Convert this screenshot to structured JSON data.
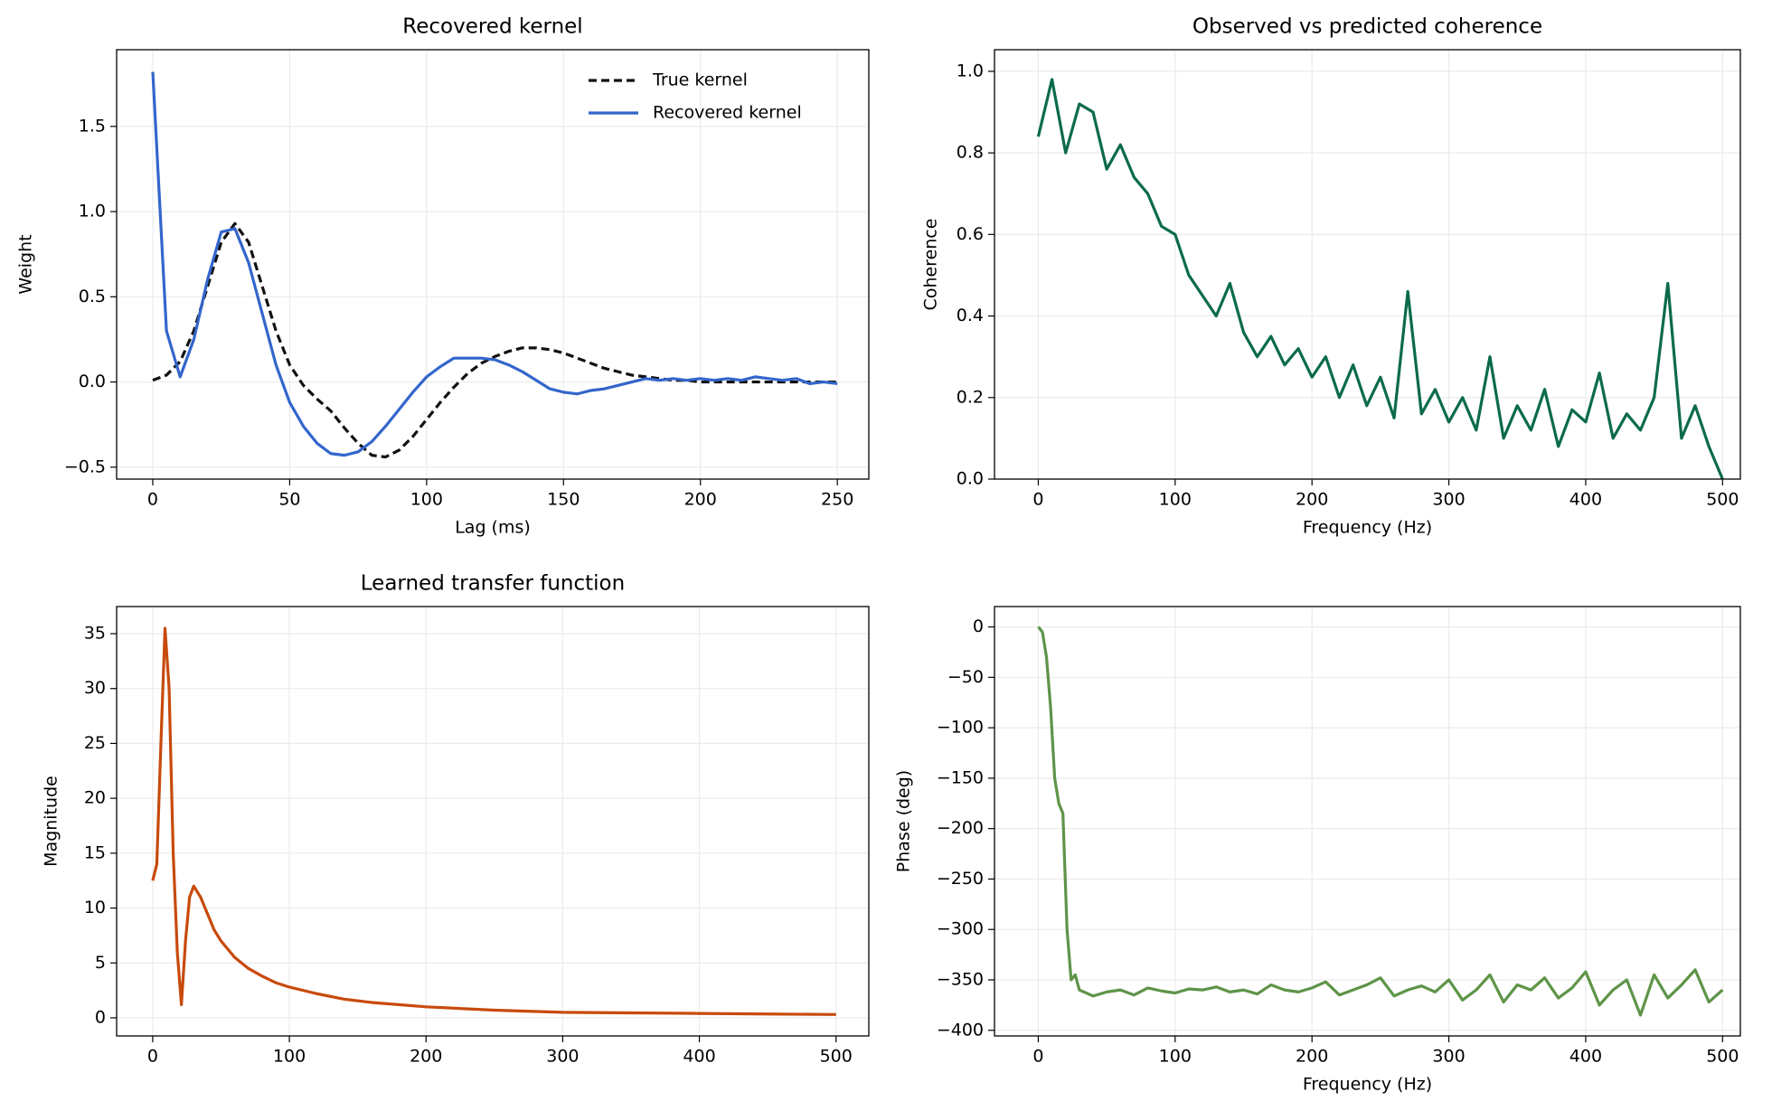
{
  "chart_data": [
    {
      "type": "line",
      "title": "Recovered kernel",
      "x_label": "Lag (ms)",
      "y_label": "Weight",
      "x": [
        0,
        5,
        10,
        15,
        20,
        25,
        30,
        35,
        40,
        45,
        50,
        55,
        60,
        65,
        70,
        75,
        80,
        85,
        90,
        95,
        100,
        105,
        110,
        115,
        120,
        125,
        130,
        135,
        140,
        145,
        150,
        155,
        160,
        165,
        170,
        175,
        180,
        185,
        190,
        195,
        200,
        205,
        210,
        215,
        220,
        225,
        230,
        235,
        240,
        245,
        250
      ],
      "series": [
        {
          "name": "True kernel",
          "color": "#111111",
          "linestyle": "dashed",
          "values": [
            0.01,
            0.04,
            0.12,
            0.3,
            0.56,
            0.82,
            0.93,
            0.82,
            0.56,
            0.3,
            0.1,
            -0.02,
            -0.1,
            -0.17,
            -0.27,
            -0.36,
            -0.43,
            -0.44,
            -0.4,
            -0.32,
            -0.22,
            -0.12,
            -0.03,
            0.05,
            0.11,
            0.15,
            0.18,
            0.2,
            0.2,
            0.19,
            0.17,
            0.14,
            0.11,
            0.08,
            0.06,
            0.04,
            0.03,
            0.02,
            0.01,
            0.01,
            0,
            0,
            0,
            0,
            0,
            0,
            0,
            0,
            0,
            0,
            0
          ]
        },
        {
          "name": "Recovered kernel",
          "color": "#3366cc",
          "linestyle": "solid",
          "values": [
            1.82,
            0.3,
            0.03,
            0.25,
            0.6,
            0.88,
            0.9,
            0.7,
            0.4,
            0.1,
            -0.12,
            -0.26,
            -0.36,
            -0.42,
            -0.43,
            -0.41,
            -0.35,
            -0.26,
            -0.16,
            -0.06,
            0.03,
            0.09,
            0.14,
            0.14,
            0.14,
            0.13,
            0.1,
            0.06,
            0.01,
            -0.04,
            -0.06,
            -0.07,
            -0.05,
            -0.04,
            -0.02,
            0,
            0.02,
            0.01,
            0.02,
            0.01,
            0.02,
            0.01,
            0.02,
            0.01,
            0.03,
            0.02,
            0.01,
            0.02,
            -0.01,
            0,
            -0.01
          ]
        }
      ],
      "xlim": [
        -13.2,
        261.5
      ],
      "ylim": [
        -0.57,
        1.95
      ],
      "xticks": [
        0,
        50,
        100,
        150,
        200,
        250
      ],
      "yticks": [
        {
          "value": -0.5,
          "label": "−0.5"
        },
        {
          "value": 0,
          "label": "0.0"
        },
        {
          "value": 0.5,
          "label": "0.5"
        },
        {
          "value": 1,
          "label": "1.0"
        },
        {
          "value": 1.5,
          "label": "1.5"
        }
      ],
      "grid": true,
      "legend": "upper right"
    },
    {
      "type": "line",
      "title": "Observed vs predicted coherence",
      "x_label": "Frequency (Hz)",
      "y_label": "Coherence",
      "x": [
        0,
        10,
        20,
        30,
        40,
        50,
        60,
        70,
        80,
        90,
        100,
        110,
        120,
        130,
        140,
        150,
        160,
        170,
        180,
        190,
        200,
        210,
        220,
        230,
        240,
        250,
        260,
        270,
        280,
        290,
        300,
        310,
        320,
        330,
        340,
        350,
        360,
        370,
        380,
        390,
        400,
        410,
        420,
        430,
        440,
        450,
        460,
        470,
        480,
        490,
        500
      ],
      "series": [
        {
          "name": "Coherence",
          "color": "#0b6b4a",
          "linestyle": "solid",
          "values": [
            0.84,
            0.98,
            0.8,
            0.92,
            0.9,
            0.76,
            0.82,
            0.74,
            0.7,
            0.62,
            0.6,
            0.5,
            0.45,
            0.4,
            0.48,
            0.36,
            0.3,
            0.35,
            0.28,
            0.32,
            0.25,
            0.3,
            0.2,
            0.28,
            0.18,
            0.25,
            0.15,
            0.46,
            0.16,
            0.22,
            0.14,
            0.2,
            0.12,
            0.3,
            0.1,
            0.18,
            0.12,
            0.22,
            0.08,
            0.17,
            0.14,
            0.26,
            0.1,
            0.16,
            0.12,
            0.2,
            0.48,
            0.1,
            0.18,
            0.08,
            0.0
          ]
        }
      ],
      "xlim": [
        -32,
        513
      ],
      "ylim": [
        0,
        1.053
      ],
      "xticks": [
        0,
        100,
        200,
        300,
        400,
        500
      ],
      "yticks": [
        {
          "value": 0,
          "label": "0.0"
        },
        {
          "value": 0.2,
          "label": "0.2"
        },
        {
          "value": 0.4,
          "label": "0.4"
        },
        {
          "value": 0.6,
          "label": "0.6"
        },
        {
          "value": 0.8,
          "label": "0.8"
        },
        {
          "value": 1,
          "label": "1.0"
        }
      ],
      "grid": true
    },
    {
      "type": "line",
      "title": "Learned transfer function",
      "y_label": "Magnitude",
      "x": [
        0,
        3,
        6,
        9,
        12,
        15,
        18,
        21,
        24,
        27,
        30,
        35,
        40,
        45,
        50,
        60,
        70,
        80,
        90,
        100,
        120,
        140,
        160,
        180,
        200,
        250,
        300,
        350,
        400,
        450,
        500
      ],
      "series": [
        {
          "name": "Magnitude",
          "color": "#c84a0c",
          "linestyle": "solid",
          "values": [
            12.5,
            14,
            25,
            35.5,
            30,
            15,
            6,
            1.2,
            7,
            11,
            12,
            11,
            9.5,
            8,
            7,
            5.5,
            4.5,
            3.8,
            3.2,
            2.8,
            2.2,
            1.7,
            1.4,
            1.2,
            1.0,
            0.7,
            0.5,
            0.45,
            0.4,
            0.35,
            0.3
          ]
        }
      ],
      "xlim": [
        -26.4,
        524
      ],
      "ylim": [
        -1.65,
        37.47
      ],
      "xticks": [
        0,
        100,
        200,
        300,
        400,
        500
      ],
      "yticks": [
        0,
        5,
        10,
        15,
        20,
        25,
        30,
        35
      ],
      "grid": true
    },
    {
      "type": "line",
      "x_label": "Frequency (Hz)",
      "y_label": "Phase (deg)",
      "x": [
        0,
        3,
        6,
        9,
        12,
        15,
        18,
        21,
        24,
        27,
        30,
        40,
        50,
        60,
        70,
        80,
        90,
        100,
        110,
        120,
        130,
        140,
        150,
        160,
        170,
        180,
        190,
        200,
        210,
        220,
        230,
        240,
        250,
        260,
        270,
        280,
        290,
        300,
        310,
        320,
        330,
        340,
        350,
        360,
        370,
        380,
        390,
        400,
        410,
        420,
        430,
        440,
        450,
        460,
        470,
        480,
        490,
        500
      ],
      "series": [
        {
          "name": "Phase",
          "color": "#5e9448",
          "linestyle": "solid",
          "values": [
            0,
            -5,
            -30,
            -80,
            -150,
            -175,
            -185,
            -300,
            -350,
            -345,
            -360,
            -366,
            -362,
            -360,
            -365,
            -358,
            -361,
            -363,
            -359,
            -360,
            -357,
            -362,
            -360,
            -364,
            -355,
            -360,
            -362,
            -358,
            -352,
            -365,
            -360,
            -355,
            -348,
            -366,
            -360,
            -356,
            -362,
            -350,
            -370,
            -360,
            -345,
            -372,
            -355,
            -360,
            -348,
            -368,
            -358,
            -342,
            -375,
            -360,
            -350,
            -385,
            -345,
            -368,
            -355,
            -340,
            -372,
            -360
          ]
        }
      ],
      "xlim": [
        -32,
        513
      ],
      "ylim": [
        -405.6,
        20.2
      ],
      "xticks": [
        0,
        100,
        200,
        300,
        400,
        500
      ],
      "yticks": [
        {
          "value": 0,
          "label": "0"
        },
        {
          "value": -50,
          "label": "−50"
        },
        {
          "value": -100,
          "label": "−100"
        },
        {
          "value": -150,
          "label": "−150"
        },
        {
          "value": -200,
          "label": "−200"
        },
        {
          "value": -250,
          "label": "−250"
        },
        {
          "value": -300,
          "label": "−300"
        },
        {
          "value": -350,
          "label": "−350"
        },
        {
          "value": -400,
          "label": "−400"
        }
      ],
      "grid": true
    }
  ]
}
